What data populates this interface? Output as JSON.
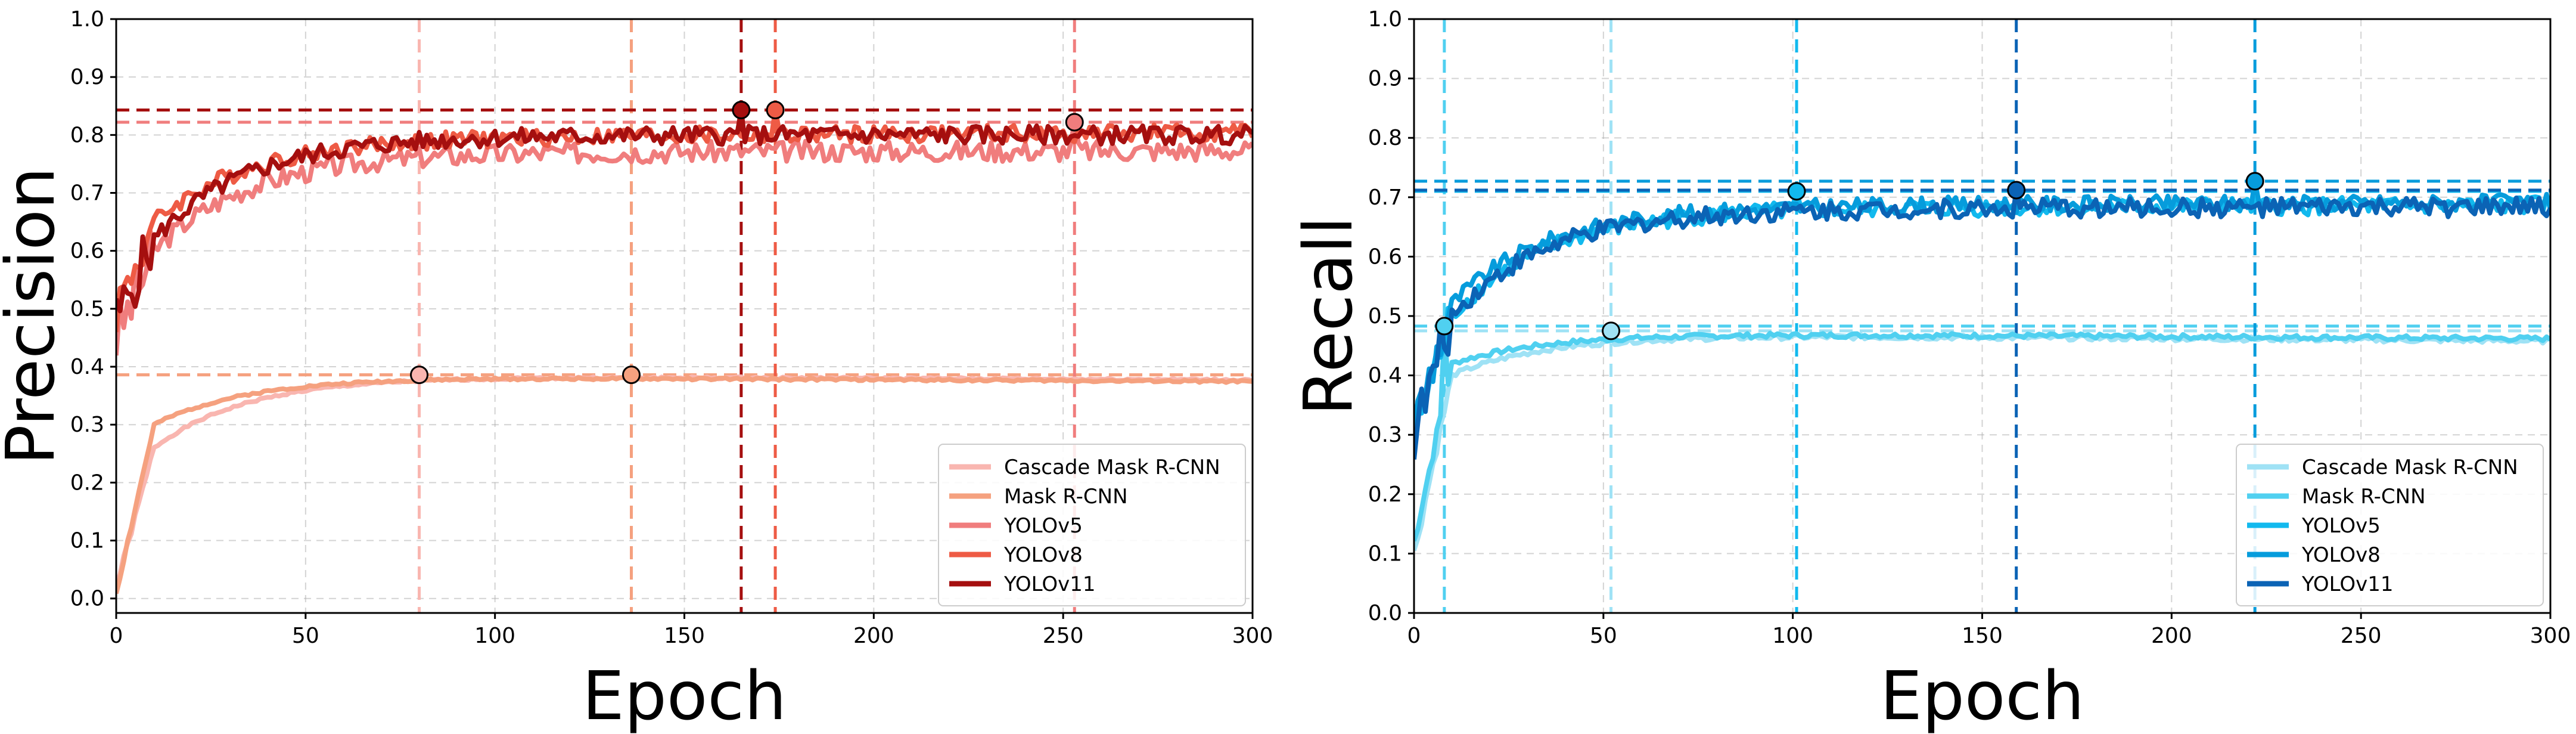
{
  "chart_data": [
    {
      "type": "line",
      "name": "precision",
      "xlabel": "Epoch",
      "ylabel": "Precision",
      "xlim": [
        0,
        300
      ],
      "ylim": [
        -0.025,
        1.0
      ],
      "xticks": [
        0,
        50,
        100,
        150,
        200,
        250,
        300
      ],
      "xtick_labels": [
        "0",
        "50",
        "100",
        "150",
        "200",
        "250",
        "300"
      ],
      "yticks": [
        0.0,
        0.1,
        0.2,
        0.3,
        0.4,
        0.5,
        0.6,
        0.7,
        0.8,
        0.9,
        1.0
      ],
      "ytick_labels": [
        "0.0",
        "0.1",
        "0.2",
        "0.3",
        "0.4",
        "0.5",
        "0.6",
        "0.7",
        "0.8",
        "0.9",
        "1.0"
      ],
      "grid": true,
      "legend_position": "bottom-right",
      "series": [
        {
          "name": "Cascade Mask R-CNN",
          "color": "#F9B6B0",
          "best_epoch": 80,
          "best_value": 0.386,
          "start": 0.02,
          "early": 0.26,
          "plateau": 0.385,
          "end": 0.372,
          "noise": 0.002,
          "seed": 1
        },
        {
          "name": "Mask R-CNN",
          "color": "#F5A17F",
          "best_epoch": 136,
          "best_value": 0.386,
          "start": 0.01,
          "early": 0.3,
          "plateau": 0.384,
          "end": 0.368,
          "noise": 0.002,
          "seed": 2
        },
        {
          "name": "YOLOv5",
          "color": "#F07D7D",
          "best_epoch": 253,
          "best_value": 0.822,
          "start": 0.45,
          "early": 0.6,
          "plateau": 0.77,
          "end": 0.775,
          "noise": 0.018,
          "seed": 3
        },
        {
          "name": "YOLOv8",
          "color": "#EE5B45",
          "best_epoch": 174,
          "best_value": 0.843,
          "start": 0.5,
          "early": 0.65,
          "plateau": 0.795,
          "end": 0.81,
          "noise": 0.015,
          "seed": 4
        },
        {
          "name": "YOLOv11",
          "color": "#A50F0F",
          "best_epoch": 165,
          "best_value": 0.843,
          "start": 0.48,
          "early": 0.62,
          "plateau": 0.8,
          "end": 0.8,
          "noise": 0.016,
          "seed": 5
        }
      ]
    },
    {
      "type": "line",
      "name": "recall",
      "xlabel": "Epoch",
      "ylabel": "Recall",
      "xlim": [
        0,
        300
      ],
      "ylim": [
        0.0,
        1.0
      ],
      "xticks": [
        0,
        50,
        100,
        150,
        200,
        250,
        300
      ],
      "xtick_labels": [
        "0",
        "50",
        "100",
        "150",
        "200",
        "250",
        "300"
      ],
      "yticks": [
        0.0,
        0.1,
        0.2,
        0.3,
        0.4,
        0.5,
        0.6,
        0.7,
        0.8,
        0.9,
        1.0
      ],
      "ytick_labels": [
        "0.0",
        "0.1",
        "0.2",
        "0.3",
        "0.4",
        "0.5",
        "0.6",
        "0.7",
        "0.8",
        "0.9",
        "1.0"
      ],
      "grid": true,
      "legend_position": "bottom-right",
      "series": [
        {
          "name": "Cascade Mask R-CNN",
          "color": "#9FE2F5",
          "best_epoch": 52,
          "best_value": 0.475,
          "start": 0.1,
          "early": 0.4,
          "plateau": 0.47,
          "end": 0.45,
          "noise": 0.004,
          "seed": 6
        },
        {
          "name": "Mask R-CNN",
          "color": "#50D0F0",
          "best_epoch": 8,
          "best_value": 0.483,
          "start": 0.12,
          "early": 0.42,
          "plateau": 0.472,
          "end": 0.455,
          "noise": 0.004,
          "seed": 7
        },
        {
          "name": "YOLOv5",
          "color": "#12B9EE",
          "best_epoch": 101,
          "best_value": 0.71,
          "start": 0.3,
          "early": 0.5,
          "plateau": 0.68,
          "end": 0.69,
          "noise": 0.015,
          "seed": 8
        },
        {
          "name": "YOLOv8",
          "color": "#069CDC",
          "best_epoch": 222,
          "best_value": 0.727,
          "start": 0.32,
          "early": 0.52,
          "plateau": 0.685,
          "end": 0.695,
          "noise": 0.014,
          "seed": 9
        },
        {
          "name": "YOLOv11",
          "color": "#0B63B5",
          "best_epoch": 159,
          "best_value": 0.712,
          "start": 0.3,
          "early": 0.5,
          "plateau": 0.68,
          "end": 0.685,
          "noise": 0.016,
          "seed": 10
        }
      ]
    }
  ]
}
